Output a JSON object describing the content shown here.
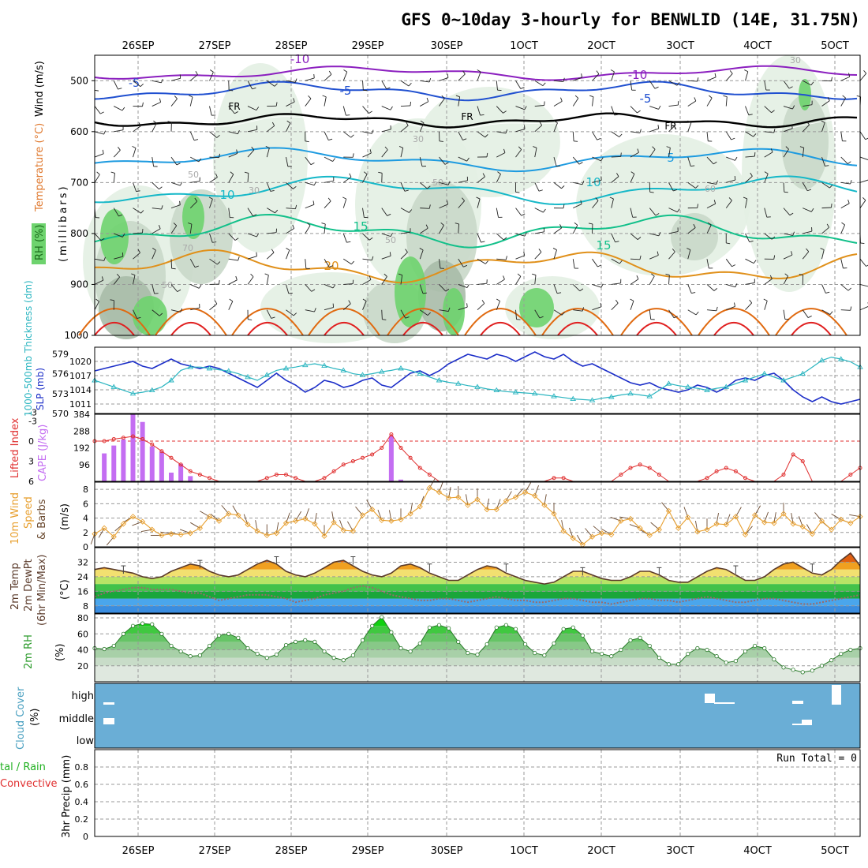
{
  "title": "GFS 0~10day 3-hourly for BENWLID (14E, 31.75N)",
  "dates": [
    "26SEP",
    "27SEP",
    "28SEP",
    "29SEP",
    "30SEP",
    "1OCT",
    "2OCT",
    "3OCT",
    "4OCT",
    "5OCT"
  ],
  "colors": {
    "frame": "#000000",
    "grid": "#999999",
    "rh_light": "#e3f0e3",
    "rh_mid": "#c9d8c9",
    "rh_dark": "#a9bba9",
    "rh_green": "#6ed36e",
    "temp_purple": "#8b1fbf",
    "temp_blue": "#2050d0",
    "temp_skyblue": "#1e9be0",
    "temp_cyan": "#16b8c8",
    "temp_green": "#12c08a",
    "temp_orange": "#e0901a",
    "temp_darkorange": "#e06a10",
    "temp_red": "#e02020",
    "slp": "#1c2ec8",
    "thickness": "#2ab5c0",
    "cape": "#c46ef2",
    "lifted": "#e03030",
    "wind": "#e8a030",
    "barb": "#6b4a30",
    "temp_line": "#5a3a2a",
    "dew_line": "#9a6a6a",
    "rh2m_line": "#2a7a2a",
    "cloud_bg": "#6aaed6",
    "cloud_gap": "#ffffff"
  },
  "panels": {
    "upper": {
      "ylabel": "(millibars)",
      "legend_wind": "Wind (m/s)",
      "legend_temp": "Temperature (°C)",
      "legend_rh": "RH (%)",
      "yticks": [
        "500",
        "600",
        "700",
        "800",
        "900",
        "1000"
      ],
      "contour_labels": [
        "-10",
        "-10",
        "-5",
        "-5",
        "FR",
        "FR",
        "FR",
        "-5",
        "5",
        "10",
        "10",
        "15",
        "15",
        "20",
        "30",
        "50",
        "50",
        "50",
        "30",
        "70",
        "50",
        "60",
        "30"
      ]
    },
    "slp": {
      "ylabel_left": "1000-500mb Thickness (dm)",
      "ylabel_right": "SLP (mb)",
      "left_ticks": [
        "579",
        "576",
        "573",
        "570"
      ],
      "right_ticks": [
        "1020",
        "1017",
        "1014",
        "1011"
      ]
    },
    "cape": {
      "ylabel_left": "Lifted Index",
      "ylabel_right": "CAPE (J/kg)",
      "left_ticks": [
        "-3",
        "-3",
        "0",
        "3",
        "6"
      ],
      "right_ticks": [
        "384",
        "288",
        "192",
        "96"
      ]
    },
    "wind": {
      "ylabel1": "10m Wind",
      "ylabel2": "Speed",
      "ylabel3": "& Barbs",
      "ylabel4": "(m/s)",
      "ticks": [
        "8",
        "6",
        "4",
        "2",
        "0"
      ]
    },
    "temp": {
      "ylabel1": "2m Temp",
      "ylabel2": "2m DewPt",
      "ylabel3": "(6hr Min/Max)",
      "ylabel4": "(°C)",
      "ticks": [
        "32",
        "24",
        "16",
        "8"
      ]
    },
    "rh": {
      "ylabel1": "2m RH",
      "ylabel2": "(%)",
      "ticks": [
        "80",
        "60",
        "40",
        "20"
      ]
    },
    "cloud": {
      "ylabel1": "Cloud Cover",
      "ylabel2": "(%)",
      "levels": [
        "high",
        "middle",
        "low"
      ]
    },
    "precip": {
      "ylabel1": "tal / Rain",
      "ylabel2": "Convective",
      "ylabel3": "3hr Precip (mm)",
      "ticks": [
        "0.8",
        "0.6",
        "0.4",
        "0.2",
        "0"
      ],
      "run_total": "Run Total = 0"
    }
  },
  "chart_data": {
    "type": "line",
    "x_unit": "3-hourly steps from 25SEP 12UTC",
    "steps": 81,
    "series": [
      {
        "name": "SLP (mb)",
        "values": [
          1018,
          1018.5,
          1019,
          1019.5,
          1020,
          1019,
          1018.5,
          1019.5,
          1020.5,
          1019.5,
          1019,
          1018.5,
          1019,
          1018.5,
          1017.5,
          1016.5,
          1015.5,
          1014.5,
          1016,
          1017.5,
          1016,
          1015,
          1013.5,
          1014.5,
          1016,
          1015.5,
          1014.5,
          1015,
          1016,
          1016.5,
          1015,
          1014.5,
          1016,
          1017.5,
          1018,
          1017,
          1018,
          1019.5,
          1020.5,
          1021.5,
          1021,
          1020.5,
          1021.5,
          1021,
          1020,
          1021,
          1022,
          1021,
          1020.5,
          1021.5,
          1020,
          1019,
          1019.5,
          1018.5,
          1017.5,
          1016.5,
          1015.5,
          1015,
          1015.5,
          1014.5,
          1014,
          1013.5,
          1014,
          1015,
          1014.5,
          1013.5,
          1014.5,
          1016,
          1016.5,
          1016,
          1017,
          1017.5,
          1016,
          1014,
          1012.5,
          1011.5,
          1012.5,
          1011.5,
          1011,
          1011.5,
          1012
        ]
      },
      {
        "name": "1000-500mb Thickness (dm)",
        "values": [
          575,
          574.5,
          574,
          573.5,
          573,
          573.2,
          573.5,
          574,
          575,
          576.5,
          577,
          577,
          576.8,
          576.6,
          576.4,
          576,
          575.5,
          575,
          575.8,
          576.5,
          576.8,
          577,
          577.3,
          577.5,
          577.2,
          576.8,
          576.5,
          576,
          575.8,
          576,
          576.3,
          576.5,
          576.8,
          576.5,
          576,
          575.5,
          575,
          574.7,
          574.5,
          574.2,
          574,
          573.7,
          573.5,
          573.3,
          573.2,
          573.1,
          573,
          572.8,
          572.6,
          572.4,
          572.2,
          572.1,
          572,
          572.3,
          572.5,
          572.8,
          573,
          572.8,
          572.6,
          573.5,
          574.5,
          574.2,
          574,
          573.8,
          573.5,
          573.8,
          574,
          574.5,
          575,
          575.5,
          576,
          575.5,
          575,
          575.5,
          576,
          577,
          578,
          578.5,
          578.2,
          577.8,
          577
        ]
      },
      {
        "name": "CAPE (J/kg)",
        "values": [
          0,
          160,
          205,
          240,
          385,
          340,
          200,
          170,
          50,
          100,
          30,
          0,
          0,
          0,
          0,
          0,
          0,
          0,
          0,
          0,
          0,
          0,
          0,
          0,
          0,
          0,
          0,
          0,
          0,
          0,
          0,
          260,
          10,
          0,
          0,
          0,
          0,
          0,
          0,
          0,
          0,
          0,
          0,
          0,
          0,
          0,
          0,
          0,
          0,
          0,
          0,
          0,
          0,
          0,
          0,
          0,
          0,
          0,
          0,
          0,
          0,
          0,
          0,
          0,
          0,
          0,
          0,
          0,
          0,
          0,
          0,
          0,
          0,
          0,
          0,
          0,
          0,
          0,
          0,
          0,
          0
        ]
      },
      {
        "name": "Lifted Index",
        "values": [
          0,
          0,
          -0.3,
          -0.5,
          -0.7,
          -0.3,
          0.5,
          1.5,
          2.5,
          3.5,
          4.5,
          5,
          5.5,
          6,
          6.5,
          7,
          6.5,
          6,
          5.5,
          5,
          5,
          5.5,
          6,
          6,
          5.5,
          4.5,
          3.5,
          3,
          2.5,
          2,
          1,
          -1,
          1,
          2.5,
          4,
          5,
          6,
          6.5,
          7,
          7,
          7.5,
          8,
          8.5,
          9,
          8.5,
          8,
          7,
          6,
          5.5,
          5.5,
          6,
          7,
          7.5,
          7,
          6,
          5,
          4,
          3.5,
          4,
          5,
          6,
          7,
          8,
          7,
          5.5,
          4.5,
          4,
          4.5,
          5.5,
          7,
          8,
          7.5,
          5,
          2,
          3,
          6,
          9,
          8,
          6,
          5,
          4
        ]
      },
      {
        "name": "10m Wind Speed (m/s)",
        "values": [
          1.8,
          2.6,
          1.4,
          3.2,
          4.2,
          3.5,
          2.4,
          1.6,
          1.8,
          1.7,
          1.9,
          2.6,
          4.2,
          3.6,
          4.6,
          4.4,
          3.1,
          2.2,
          1.6,
          1.9,
          3.3,
          3.6,
          3.9,
          3.2,
          1.5,
          3.4,
          2.3,
          2.2,
          4.4,
          5.2,
          3.7,
          3.6,
          3.8,
          4.6,
          5.6,
          8.2,
          7.6,
          6.8,
          6.9,
          5.8,
          6.6,
          5.2,
          5.2,
          6.4,
          6.9,
          7.6,
          7.1,
          5.8,
          4.6,
          2.2,
          1.2,
          0.3,
          1.4,
          1.9,
          1.7,
          3.6,
          3.9,
          2.6,
          1.6,
          2.4,
          5.0,
          2.6,
          4.1,
          2.1,
          2.4,
          3.2,
          3.1,
          4.2,
          1.7,
          4.4,
          3.4,
          3.3,
          4.6,
          3.2,
          2.8,
          1.8,
          3.6,
          2.4,
          3.8,
          3.3,
          4.2
        ]
      },
      {
        "name": "2m Temp (°C)",
        "values": [
          28,
          29,
          28,
          27,
          26,
          24,
          23,
          24,
          27,
          29,
          31,
          30,
          27,
          25,
          24,
          25,
          28,
          31,
          33,
          31,
          27,
          25,
          24,
          26,
          29,
          32,
          33,
          30,
          27,
          25,
          24,
          26,
          30,
          31,
          29,
          26,
          24,
          22,
          22,
          25,
          28,
          30,
          29,
          26,
          24,
          22,
          21,
          20,
          21,
          24,
          27,
          27,
          25,
          23,
          22,
          22,
          24,
          27,
          27,
          25,
          22,
          21,
          21,
          24,
          27,
          29,
          28,
          25,
          22,
          22,
          24,
          28,
          31,
          32,
          29,
          26,
          25,
          28,
          33,
          37,
          30
        ]
      },
      {
        "name": "2m DewPt (°C)",
        "values": [
          13,
          15,
          16,
          17,
          18,
          18,
          17,
          17,
          17,
          16,
          15,
          15,
          13,
          11,
          12,
          13,
          14,
          14,
          14,
          13,
          12,
          10,
          11,
          12,
          14,
          15,
          16,
          18,
          19,
          18,
          16,
          14,
          13,
          12,
          11,
          11,
          12,
          12,
          11,
          10,
          11,
          12,
          13,
          12,
          11,
          11,
          10,
          10,
          11,
          12,
          12,
          11,
          10,
          10,
          9,
          10,
          11,
          12,
          12,
          11,
          11,
          10,
          11,
          12,
          13,
          12,
          11,
          10,
          10,
          11,
          12,
          12,
          11,
          10,
          9,
          9,
          10,
          11,
          12,
          13,
          14
        ]
      },
      {
        "name": "2m RH (%)",
        "values": [
          42,
          41,
          45,
          60,
          70,
          73,
          72,
          60,
          45,
          38,
          32,
          33,
          45,
          58,
          60,
          55,
          42,
          35,
          30,
          34,
          46,
          50,
          52,
          50,
          38,
          30,
          27,
          33,
          52,
          70,
          81,
          62,
          42,
          38,
          48,
          68,
          71,
          67,
          50,
          36,
          34,
          47,
          68,
          71,
          66,
          47,
          36,
          33,
          48,
          66,
          68,
          58,
          38,
          35,
          32,
          40,
          52,
          55,
          45,
          30,
          22,
          22,
          35,
          42,
          40,
          32,
          24,
          26,
          38,
          45,
          42,
          28,
          18,
          15,
          12,
          14,
          20,
          27,
          35,
          40,
          42
        ]
      },
      {
        "name": "3hr Precip (mm)",
        "values": [
          0,
          0,
          0,
          0,
          0,
          0,
          0,
          0,
          0,
          0,
          0,
          0,
          0,
          0,
          0,
          0,
          0,
          0,
          0,
          0,
          0,
          0,
          0,
          0,
          0,
          0,
          0,
          0,
          0,
          0,
          0,
          0,
          0,
          0,
          0,
          0,
          0,
          0,
          0,
          0,
          0,
          0,
          0,
          0,
          0,
          0,
          0,
          0,
          0,
          0,
          0,
          0,
          0,
          0,
          0,
          0,
          0,
          0,
          0,
          0,
          0,
          0,
          0,
          0,
          0,
          0,
          0,
          0,
          0,
          0,
          0,
          0,
          0,
          0,
          0,
          0,
          0,
          0,
          0,
          0,
          0
        ]
      }
    ],
    "wind_barbs_10m_deg": [
      200,
      210,
      220,
      230,
      240,
      250,
      260,
      270,
      280,
      280,
      290,
      300,
      300,
      310,
      320,
      330,
      340,
      350,
      0,
      10,
      20,
      30,
      20,
      10,
      0,
      350,
      340,
      330,
      320,
      330,
      340,
      350,
      0,
      10,
      20,
      30,
      20,
      10,
      0,
      350,
      0,
      10,
      20,
      30,
      40,
      30,
      20,
      10,
      0,
      350,
      340,
      330,
      320,
      310,
      300,
      290,
      280,
      290,
      300,
      310,
      320,
      330,
      340,
      350,
      0,
      10,
      20,
      30,
      40,
      30,
      20,
      10,
      0,
      350,
      340,
      330,
      320,
      310,
      300,
      290,
      280
    ],
    "cloud_cover": {
      "high": [
        70,
        0,
        0,
        0,
        0,
        0,
        0,
        0,
        0,
        0,
        0,
        0,
        0,
        0,
        0,
        0,
        0,
        0,
        0,
        0,
        0,
        0,
        0,
        0,
        0,
        0,
        0,
        0,
        0,
        0,
        0,
        0,
        0,
        0,
        0,
        0,
        0,
        0,
        0,
        0,
        0,
        0,
        0,
        0,
        0,
        0,
        0,
        0,
        0,
        0,
        0,
        0,
        0,
        0,
        0,
        0,
        0,
        0,
        0,
        0,
        0,
        0,
        0,
        0,
        0,
        0,
        0,
        0,
        0,
        0,
        0,
        0,
        40,
        0,
        0,
        0,
        40,
        0,
        0,
        90,
        0
      ]
    },
    "yranges": {
      "upper_mb": [
        450,
        1000
      ],
      "slp_mb": [
        1009,
        1023
      ],
      "thickness_dm": [
        570,
        580
      ],
      "cape": [
        0,
        384
      ],
      "lifted_index": [
        -4,
        6
      ],
      "wind_ms": [
        0,
        9
      ],
      "temp_c": [
        4,
        40
      ],
      "rh_pct": [
        0,
        85
      ],
      "precip_mm": [
        0,
        1
      ]
    }
  }
}
